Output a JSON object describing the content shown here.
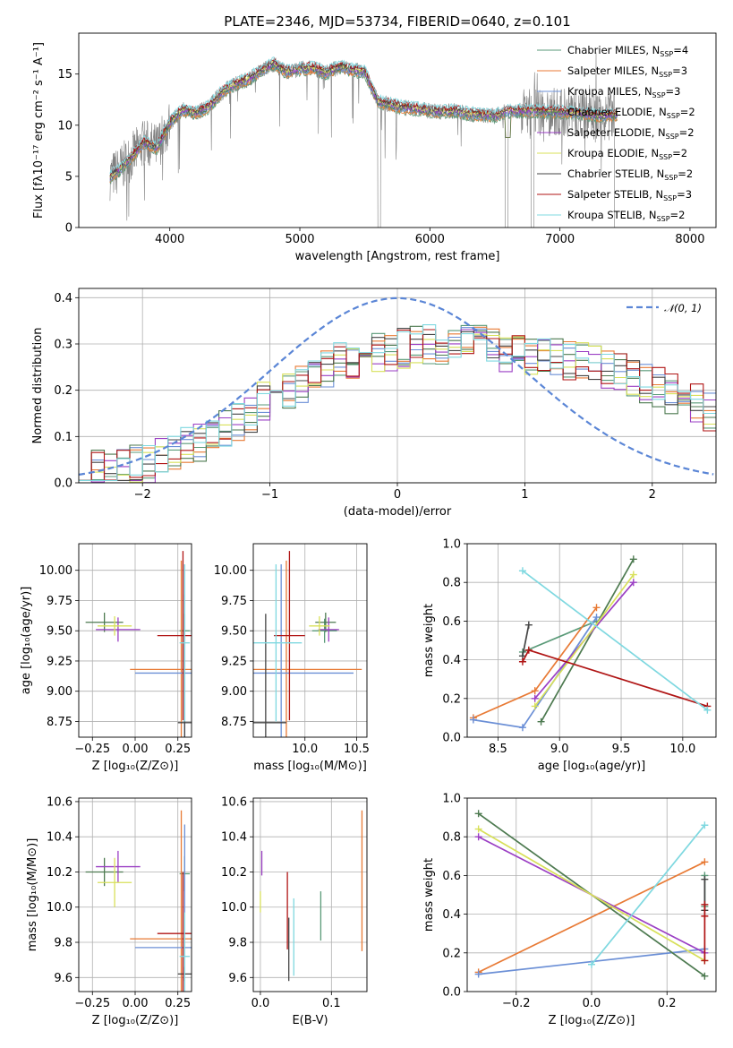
{
  "figure": {
    "title": "PLATE=2346, MJD=53734, FIBERID=0640, z=0.101"
  },
  "series": [
    {
      "id": "chabrier_miles",
      "label": "Chabrier MILES, N$_{SSP}$=4",
      "label_main": "Chabrier MILES, N",
      "label_sub": "SSP",
      "label_tail": "=4",
      "color": "#5a9a78"
    },
    {
      "id": "salpeter_miles",
      "label": "Salpeter MILES, N$_{SSP}$=3",
      "label_main": "Salpeter MILES, N",
      "label_sub": "SSP",
      "label_tail": "=3",
      "color": "#e87a35"
    },
    {
      "id": "kroupa_miles",
      "label": "Kroupa MILES, N$_{SSP}$=3",
      "label_main": "Kroupa MILES, N",
      "label_sub": "SSP",
      "label_tail": "=3",
      "color": "#6b8fd6"
    },
    {
      "id": "chabrier_elodie",
      "label": "Chabrier ELODIE, N$_{SSP}$=2",
      "label_main": "Chabrier ELODIE, N",
      "label_sub": "SSP",
      "label_tail": "=2",
      "color": "#4d7a50"
    },
    {
      "id": "salpeter_elodie",
      "label": "Salpeter ELODIE, N$_{SSP}$=2",
      "label_main": "Salpeter ELODIE, N",
      "label_sub": "SSP",
      "label_tail": "=2",
      "color": "#9b3fc4"
    },
    {
      "id": "kroupa_elodie",
      "label": "Kroupa ELODIE, N$_{SSP}$=2",
      "label_main": "Kroupa ELODIE, N",
      "label_sub": "SSP",
      "label_tail": "=2",
      "color": "#d8e05a"
    },
    {
      "id": "chabrier_stelib",
      "label": "Chabrier STELIB, N$_{SSP}$=2",
      "label_main": "Chabrier STELIB, N",
      "label_sub": "SSP",
      "label_tail": "=2",
      "color": "#454545"
    },
    {
      "id": "salpeter_stelib",
      "label": "Salpeter STELIB, N$_{SSP}$=3",
      "label_main": "Salpeter STELIB, N",
      "label_sub": "SSP",
      "label_tail": "=3",
      "color": "#b01515"
    },
    {
      "id": "kroupa_stelib",
      "label": "Kroupa STELIB, N$_{SSP}$=2",
      "label_main": "Kroupa STELIB, N",
      "label_sub": "SSP",
      "label_tail": "=2",
      "color": "#7fd8e0"
    }
  ],
  "chart_data": [
    {
      "id": "spectrum",
      "type": "line",
      "title": "PLATE=2346, MJD=53734, FIBERID=0640, z=0.101",
      "xlabel": "wavelength [Angstrom, rest frame]",
      "ylabel": "Flux [f$_\\lambda$10$^{-17}$ erg cm$^{-2}$ s$^{-1}$ A$^{-1}$]",
      "ylabel_display": "Flux [fλ10⁻¹⁷ erg cm⁻² s⁻¹ A⁻¹]",
      "xlim": [
        3300,
        8200
      ],
      "ylim": [
        0,
        19
      ],
      "xticks": [
        4000,
        5000,
        6000,
        7000,
        8000
      ],
      "yticks": [
        0,
        5,
        10,
        15
      ],
      "data_color": "#808080",
      "data_gaps": [
        [
          5600,
          5620
        ],
        [
          6580,
          6600
        ],
        [
          6780,
          6800
        ],
        [
          7420,
          7440
        ]
      ],
      "continuum": [
        [
          3540,
          5.0
        ],
        [
          3600,
          5.5
        ],
        [
          3700,
          6.8
        ],
        [
          3800,
          8.3
        ],
        [
          3900,
          7.8
        ],
        [
          4000,
          10.2
        ],
        [
          4100,
          11.5
        ],
        [
          4200,
          11.2
        ],
        [
          4300,
          11.8
        ],
        [
          4400,
          13.2
        ],
        [
          4500,
          14.0
        ],
        [
          4600,
          14.5
        ],
        [
          4700,
          15.3
        ],
        [
          4800,
          16.0
        ],
        [
          4900,
          15.2
        ],
        [
          5000,
          15.5
        ],
        [
          5100,
          15.6
        ],
        [
          5200,
          15.1
        ],
        [
          5300,
          15.7
        ],
        [
          5400,
          15.4
        ],
        [
          5500,
          15.2
        ],
        [
          5600,
          12.3
        ],
        [
          5700,
          12.0
        ],
        [
          5800,
          11.7
        ],
        [
          5900,
          11.6
        ],
        [
          6000,
          11.4
        ],
        [
          6100,
          11.3
        ],
        [
          6200,
          11.4
        ],
        [
          6300,
          11.1
        ],
        [
          6400,
          11.0
        ],
        [
          6500,
          10.9
        ],
        [
          6600,
          11.4
        ],
        [
          6700,
          11.4
        ],
        [
          6800,
          11.4
        ],
        [
          6900,
          11.3
        ],
        [
          7000,
          11.3
        ],
        [
          7100,
          11.2
        ],
        [
          7200,
          11.1
        ],
        [
          7300,
          10.9
        ],
        [
          7400,
          11.0
        ]
      ],
      "legend": "top-right"
    },
    {
      "id": "residuals",
      "type": "line",
      "xlabel": "(data-model)/error",
      "ylabel": "Normed distribution",
      "xlim": [
        -2.5,
        2.5
      ],
      "ylim": [
        0,
        0.42
      ],
      "xticks": [
        -2,
        -1,
        0,
        1,
        2
      ],
      "yticks": [
        0.0,
        0.1,
        0.2,
        0.3,
        0.4
      ],
      "grid": true,
      "gaussian_label": "𝒩(0, 1)",
      "gaussian_color": "#5b86d6",
      "bin_width": 0.1,
      "envelope": [
        [
          -2.5,
          0.02
        ],
        [
          -2.0,
          0.04
        ],
        [
          -1.5,
          0.09
        ],
        [
          -1.2,
          0.14
        ],
        [
          -1.0,
          0.19
        ],
        [
          -0.7,
          0.22
        ],
        [
          -0.5,
          0.26
        ],
        [
          -0.3,
          0.27
        ],
        [
          0.0,
          0.29
        ],
        [
          0.3,
          0.3
        ],
        [
          0.6,
          0.3
        ],
        [
          0.9,
          0.28
        ],
        [
          1.2,
          0.27
        ],
        [
          1.5,
          0.26
        ],
        [
          1.8,
          0.23
        ],
        [
          2.1,
          0.2
        ],
        [
          2.5,
          0.15
        ]
      ],
      "legend": "top-right"
    },
    {
      "id": "age_vs_Z",
      "type": "scatter",
      "xlabel": "Z [log$_{10}$(Z/Z$_\\odot$)]",
      "xlabel_display": "Z [log₁₀(Z/Z⊙)]",
      "ylabel": "age  [log$_{10}$(age/yr)]",
      "ylabel_display": "age  [log₁₀(age/yr)]",
      "xlim": [
        -0.33,
        0.33
      ],
      "ylim": [
        8.62,
        10.22
      ],
      "xticks": [
        -0.25,
        0.0,
        0.25
      ],
      "yticks": [
        8.75,
        9.0,
        9.25,
        9.5,
        9.75,
        10.0
      ],
      "points": [
        {
          "series": "chabrier_miles",
          "x": 0.29,
          "y": 9.5,
          "xerr": 0.03,
          "yerr": 0.3
        },
        {
          "series": "salpeter_miles",
          "x": 0.27,
          "y": 9.18,
          "xerr": 0.3,
          "yerr": 0.9
        },
        {
          "series": "kroupa_miles",
          "x": 0.29,
          "y": 9.15,
          "xerr": 0.29,
          "yerr": 0.9
        },
        {
          "series": "chabrier_elodie",
          "x": -0.18,
          "y": 9.57,
          "xerr": 0.11,
          "yerr": 0.08
        },
        {
          "series": "salpeter_elodie",
          "x": -0.1,
          "y": 9.51,
          "xerr": 0.13,
          "yerr": 0.1
        },
        {
          "series": "kroupa_elodie",
          "x": -0.12,
          "y": 9.54,
          "xerr": 0.1,
          "yerr": 0.08
        },
        {
          "series": "chabrier_stelib",
          "x": 0.29,
          "y": 8.74,
          "xerr": 0.04,
          "yerr": 0.9
        },
        {
          "series": "salpeter_stelib",
          "x": 0.28,
          "y": 9.46,
          "xerr": 0.15,
          "yerr": 0.7
        },
        {
          "series": "kroupa_stelib",
          "x": 0.29,
          "y": 9.4,
          "xerr": 0.03,
          "yerr": 0.65
        }
      ]
    },
    {
      "id": "age_vs_mass",
      "type": "scatter",
      "xlabel": "mass [log$_{10}$(M/M$_\\odot$)]",
      "xlabel_display": "mass [log₁₀(M/M⊙)]",
      "xlim": [
        9.5,
        10.6
      ],
      "ylim": [
        8.62,
        10.22
      ],
      "xticks": [
        10.0,
        10.5
      ],
      "yticks": [
        8.75,
        9.0,
        9.25,
        9.5,
        9.75,
        10.0
      ],
      "points": [
        {
          "series": "chabrier_miles",
          "x": 10.19,
          "y": 9.5,
          "xerr": 0.12,
          "yerr": 0.1
        },
        {
          "series": "salpeter_miles",
          "x": 9.82,
          "y": 9.18,
          "xerr": 0.73,
          "yerr": 0.9
        },
        {
          "series": "kroupa_miles",
          "x": 9.77,
          "y": 9.15,
          "xerr": 0.7,
          "yerr": 0.9
        },
        {
          "series": "chabrier_elodie",
          "x": 10.2,
          "y": 9.57,
          "xerr": 0.1,
          "yerr": 0.08
        },
        {
          "series": "salpeter_elodie",
          "x": 10.23,
          "y": 9.51,
          "xerr": 0.1,
          "yerr": 0.1
        },
        {
          "series": "kroupa_elodie",
          "x": 10.14,
          "y": 9.54,
          "xerr": 0.1,
          "yerr": 0.08
        },
        {
          "series": "chabrier_stelib",
          "x": 9.62,
          "y": 8.74,
          "xerr": 0.2,
          "yerr": 0.9
        },
        {
          "series": "salpeter_stelib",
          "x": 9.85,
          "y": 9.46,
          "xerr": 0.15,
          "yerr": 0.7
        },
        {
          "series": "kroupa_stelib",
          "x": 9.72,
          "y": 9.4,
          "xerr": 0.25,
          "yerr": 0.65
        }
      ]
    },
    {
      "id": "weight_vs_age",
      "type": "line",
      "xlabel": "age  [log$_{10}$(age/yr)]",
      "xlabel_display": "age  [log₁₀(age/yr)]",
      "ylabel": "mass weight",
      "xlim": [
        8.25,
        10.27
      ],
      "ylim": [
        0,
        1.0
      ],
      "xticks": [
        8.5,
        9.0,
        9.5,
        10.0
      ],
      "yticks": [
        0.0,
        0.2,
        0.4,
        0.6,
        0.8,
        1.0
      ],
      "grid": true,
      "lines": [
        {
          "series": "chabrier_miles",
          "pts": [
            [
              8.7,
              0.44
            ],
            [
              9.3,
              0.6
            ]
          ]
        },
        {
          "series": "salpeter_miles",
          "pts": [
            [
              8.3,
              0.1
            ],
            [
              8.8,
              0.24
            ],
            [
              9.3,
              0.67
            ]
          ]
        },
        {
          "series": "kroupa_miles",
          "pts": [
            [
              8.3,
              0.09
            ],
            [
              8.7,
              0.05
            ],
            [
              9.3,
              0.62
            ]
          ]
        },
        {
          "series": "chabrier_elodie",
          "pts": [
            [
              8.85,
              0.08
            ],
            [
              9.6,
              0.92
            ]
          ]
        },
        {
          "series": "salpeter_elodie",
          "pts": [
            [
              8.8,
              0.2
            ],
            [
              9.6,
              0.8
            ]
          ]
        },
        {
          "series": "kroupa_elodie",
          "pts": [
            [
              8.8,
              0.16
            ],
            [
              9.6,
              0.84
            ]
          ]
        },
        {
          "series": "chabrier_stelib",
          "pts": [
            [
              8.7,
              0.42
            ],
            [
              8.75,
              0.58
            ]
          ]
        },
        {
          "series": "salpeter_stelib",
          "pts": [
            [
              8.7,
              0.39
            ],
            [
              8.75,
              0.45
            ],
            [
              10.2,
              0.16
            ]
          ]
        },
        {
          "series": "kroupa_stelib",
          "pts": [
            [
              8.7,
              0.86
            ],
            [
              10.2,
              0.14
            ]
          ]
        }
      ]
    },
    {
      "id": "mass_vs_Z",
      "type": "scatter",
      "xlabel": "Z [log$_{10}$(Z/Z$_\\odot$)]",
      "xlabel_display": "Z [log₁₀(Z/Z⊙)]",
      "ylabel": "mass [log$_{10}$(M/M$_\\odot$)]",
      "ylabel_display": "mass [log₁₀(M/M⊙)]",
      "xlim": [
        -0.33,
        0.33
      ],
      "ylim": [
        9.52,
        10.62
      ],
      "xticks": [
        -0.25,
        0.0,
        0.25
      ],
      "yticks": [
        9.6,
        9.8,
        10.0,
        10.2,
        10.4,
        10.6
      ],
      "points": [
        {
          "series": "chabrier_miles",
          "x": 0.29,
          "y": 10.19,
          "xerr": 0.03,
          "yerr": 0.1
        },
        {
          "series": "salpeter_miles",
          "x": 0.27,
          "y": 9.82,
          "xerr": 0.3,
          "yerr": 0.73
        },
        {
          "series": "kroupa_miles",
          "x": 0.29,
          "y": 9.77,
          "xerr": 0.29,
          "yerr": 0.7
        },
        {
          "series": "chabrier_elodie",
          "x": -0.18,
          "y": 10.2,
          "xerr": 0.11,
          "yerr": 0.08
        },
        {
          "series": "salpeter_elodie",
          "x": -0.1,
          "y": 10.23,
          "xerr": 0.13,
          "yerr": 0.09
        },
        {
          "series": "kroupa_elodie",
          "x": -0.12,
          "y": 10.14,
          "xerr": 0.1,
          "yerr": 0.14
        },
        {
          "series": "chabrier_stelib",
          "x": 0.29,
          "y": 9.62,
          "xerr": 0.04,
          "yerr": 0.04
        },
        {
          "series": "salpeter_stelib",
          "x": 0.28,
          "y": 9.85,
          "xerr": 0.15,
          "yerr": 0.35
        },
        {
          "series": "kroupa_stelib",
          "x": 0.29,
          "y": 9.72,
          "xerr": 0.03,
          "yerr": 0.25
        }
      ]
    },
    {
      "id": "mass_vs_ebv",
      "type": "scatter",
      "xlabel": "E(B-V)",
      "xlim": [
        -0.01,
        0.15
      ],
      "ylim": [
        9.52,
        10.62
      ],
      "xticks": [
        0.0,
        0.1
      ],
      "yticks": [
        9.6,
        9.8,
        10.0,
        10.2,
        10.4,
        10.6
      ],
      "points": [
        {
          "series": "salpeter_miles",
          "x": 0.143,
          "y": 10.15,
          "xerr": 0.0,
          "yerr": 0.4
        },
        {
          "series": "kroupa_elodie",
          "x": 0.0,
          "y": 10.03,
          "xerr": 0.0,
          "yerr": 0.06
        },
        {
          "series": "salpeter_elodie",
          "x": 0.002,
          "y": 10.25,
          "xerr": 0.0,
          "yerr": 0.07
        },
        {
          "series": "chabrier_stelib",
          "x": 0.04,
          "y": 9.76,
          "xerr": 0.0,
          "yerr": 0.18
        },
        {
          "series": "salpeter_stelib",
          "x": 0.038,
          "y": 9.98,
          "xerr": 0.0,
          "yerr": 0.22
        },
        {
          "series": "kroupa_stelib",
          "x": 0.047,
          "y": 9.83,
          "xerr": 0.0,
          "yerr": 0.22
        },
        {
          "series": "chabrier_miles",
          "x": 0.085,
          "y": 9.95,
          "xerr": 0.0,
          "yerr": 0.14
        }
      ]
    },
    {
      "id": "weight_vs_Z",
      "type": "line",
      "xlabel": "Z [log$_{10}$(Z/Z$_\\odot$)]",
      "xlabel_display": "Z [log₁₀(Z/Z⊙)]",
      "ylabel": "mass weight",
      "xlim": [
        -0.33,
        0.33
      ],
      "ylim": [
        0,
        1.0
      ],
      "xticks": [
        -0.2,
        0.0,
        0.2
      ],
      "yticks": [
        0.0,
        0.2,
        0.4,
        0.6,
        0.8,
        1.0
      ],
      "grid": true,
      "lines": [
        {
          "series": "salpeter_miles",
          "pts": [
            [
              -0.3,
              0.1
            ],
            [
              0.3,
              0.67
            ]
          ]
        },
        {
          "series": "kroupa_miles",
          "pts": [
            [
              -0.3,
              0.09
            ],
            [
              0.3,
              0.22
            ]
          ]
        },
        {
          "series": "chabrier_elodie",
          "pts": [
            [
              -0.3,
              0.92
            ],
            [
              0.3,
              0.08
            ]
          ]
        },
        {
          "series": "salpeter_elodie",
          "pts": [
            [
              -0.3,
              0.8
            ],
            [
              0.3,
              0.2
            ]
          ]
        },
        {
          "series": "kroupa_elodie",
          "pts": [
            [
              -0.3,
              0.84
            ],
            [
              0.3,
              0.16
            ]
          ]
        },
        {
          "series": "kroupa_stelib",
          "pts": [
            [
              0.0,
              0.14
            ],
            [
              0.3,
              0.86
            ]
          ]
        },
        {
          "series": "chabrier_miles",
          "pts": [
            [
              0.3,
              0.44
            ],
            [
              0.3,
              0.6
            ]
          ]
        },
        {
          "series": "chabrier_stelib",
          "pts": [
            [
              0.3,
              0.42
            ],
            [
              0.3,
              0.58
            ]
          ]
        },
        {
          "series": "salpeter_stelib",
          "pts": [
            [
              0.3,
              0.16
            ],
            [
              0.3,
              0.39
            ],
            [
              0.3,
              0.45
            ]
          ]
        }
      ]
    }
  ]
}
